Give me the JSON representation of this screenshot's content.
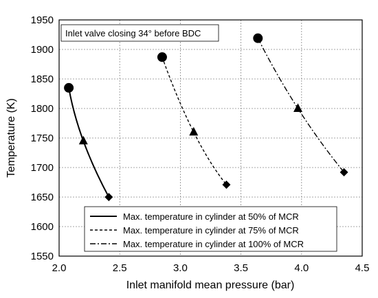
{
  "chart_data": {
    "type": "line",
    "xlabel": "Inlet manifold mean pressure (bar)",
    "ylabel": "Temperature (K)",
    "xlim": [
      2.0,
      4.5
    ],
    "ylim": [
      1550,
      1950
    ],
    "x_ticks": [
      "2.0",
      "2.5",
      "3.0",
      "3.5",
      "4.0",
      "4.5"
    ],
    "y_ticks": [
      "1550",
      "1600",
      "1650",
      "1700",
      "1750",
      "1800",
      "1850",
      "1900",
      "1950"
    ],
    "grid": true,
    "annotation": "Inlet valve closing 34° before BDC",
    "legend_position": "bottom-center",
    "series": [
      {
        "name": "Max. temperature in cylinder at 50% of MCR",
        "line_style": "solid",
        "points": [
          {
            "x": 2.08,
            "y": 1835,
            "marker": "circle"
          },
          {
            "x": 2.2,
            "y": 1745,
            "marker": "triangle"
          },
          {
            "x": 2.41,
            "y": 1650,
            "marker": "diamond"
          }
        ]
      },
      {
        "name": "Max. temperature in cylinder at 75% of MCR",
        "line_style": "dashed",
        "points": [
          {
            "x": 2.85,
            "y": 1887,
            "marker": "circle"
          },
          {
            "x": 3.11,
            "y": 1760,
            "marker": "triangle"
          },
          {
            "x": 3.38,
            "y": 1671,
            "marker": "diamond"
          }
        ]
      },
      {
        "name": "Max. temperature in cylinder at 100% of MCR",
        "line_style": "dashdot",
        "points": [
          {
            "x": 3.64,
            "y": 1919,
            "marker": "circle"
          },
          {
            "x": 3.97,
            "y": 1800,
            "marker": "triangle"
          },
          {
            "x": 4.35,
            "y": 1692,
            "marker": "diamond"
          }
        ]
      }
    ]
  }
}
